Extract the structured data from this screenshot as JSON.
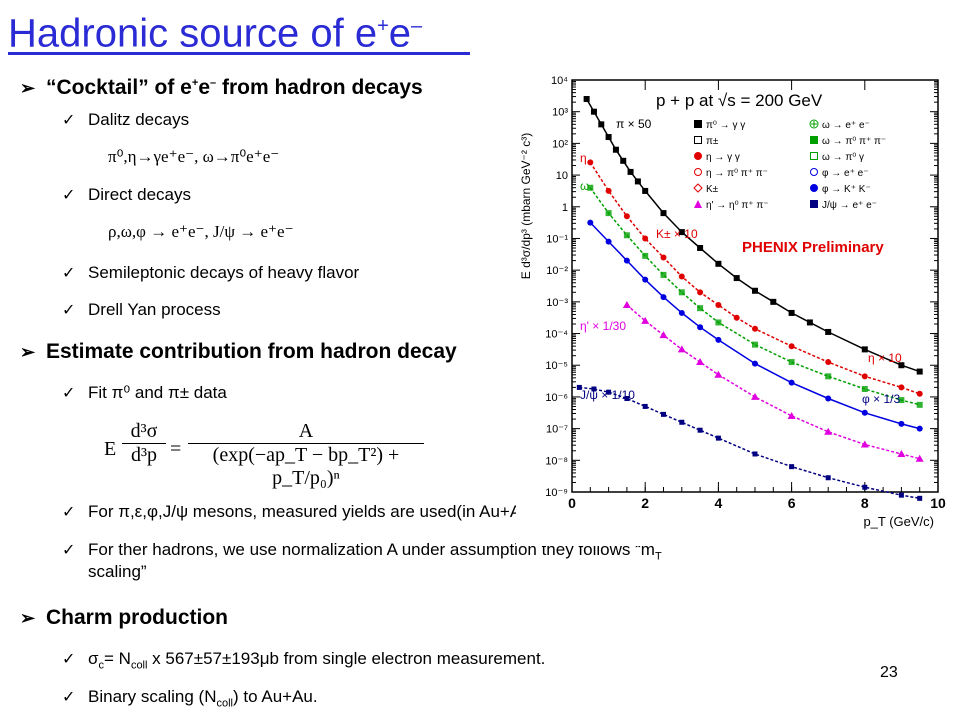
{
  "title": {
    "main": "Hadronic source of e",
    "sup1": "+",
    "mid": "e",
    "sup2": "–"
  },
  "bullets": {
    "cocktail_pre": "“Cocktail” of e",
    "cocktail_sup1": "+",
    "cocktail_mid": "e",
    "cocktail_sup2": "–",
    "cocktail_post": " from hadron decays",
    "estimate": "Estimate contribution from hadron decay",
    "charm": "Charm production"
  },
  "items": {
    "dalitz": "Dalitz decays",
    "dalitz_formula": "π⁰,η→γe⁺e⁻, ω→π⁰e⁺e⁻",
    "direct": "Direct decays",
    "direct_formula": "ρ,ω,φ → e⁺e⁻, J/ψ → e⁺e⁻",
    "semileptonic": "Semileptonic decays of heavy flavor",
    "drell_yan": "Drell Yan process",
    "fit": "Fit π⁰ and π± data",
    "for_mesons": "For π,ε,φ,J/ψ  mesons, measured yields are used(in Au+Au/p+p)",
    "for_ther_1": "For ther hadrons, we use normalization A under assumption they follows “m",
    "for_ther_sub": "T",
    "for_ther_2": "scaling”",
    "sigma_pre": "σ",
    "sigma_sub": "c",
    "sigma_mid": "= N",
    "sigma_sub2": "coll",
    "sigma_post": " x 567±57±193μb  from single electron measurement.",
    "binary_pre": "Binary scaling (N",
    "binary_sub": "coll",
    "binary_post": ") to Au+Au."
  },
  "formula": {
    "lhs_num": "d³σ",
    "lhs_den": "d³p",
    "lhs_e": "E",
    "eq": "=",
    "rhs_num": "A",
    "rhs_den": "(exp(−ap_T − bp_T²) + p_T/p₀)ⁿ"
  },
  "page_number": "23",
  "chart_data": {
    "type": "scatter",
    "title": "p + p at √s = 200 GeV",
    "xlabel": "p_T (GeV/c)",
    "ylabel": "E d³σ/dp³ (mbarn GeV⁻² c³)",
    "xlim": [
      0,
      10
    ],
    "ylim_log10": [
      -9,
      4
    ],
    "x_ticks": [
      "0",
      "2",
      "4",
      "6",
      "8",
      "10"
    ],
    "y_ticks": [
      "10⁻⁹",
      "10⁻⁸",
      "10⁻⁷",
      "10⁻⁶",
      "10⁻⁵",
      "10⁻⁴",
      "10⁻³",
      "10⁻²",
      "10⁻¹",
      "1",
      "10",
      "10²",
      "10³",
      "10⁴"
    ],
    "watermark": "PHENIX Preliminary",
    "legend": [
      {
        "label": "π⁰ → γ γ",
        "color": "#000000",
        "marker": "square-filled"
      },
      {
        "label": "π±",
        "color": "#000000",
        "marker": "square-open"
      },
      {
        "label": "η → γ γ",
        "color": "#e00000",
        "marker": "circle-filled"
      },
      {
        "label": "η → π⁰ π⁺ π⁻",
        "color": "#e00000",
        "marker": "circle-open"
      },
      {
        "label": "K±",
        "color": "#e00000",
        "marker": "diamond-open"
      },
      {
        "label": "η' → η⁰ π⁺ π⁻",
        "color": "#e000e0",
        "marker": "triangle-filled"
      },
      {
        "label": "ω → e⁺ e⁻",
        "color": "#00a000",
        "marker": "cross-open"
      },
      {
        "label": "ω → π⁰ π⁺ π⁻",
        "color": "#00a000",
        "marker": "square-filled"
      },
      {
        "label": "ω → π⁰ γ",
        "color": "#00a000",
        "marker": "square-open"
      },
      {
        "label": "φ → e⁺ e⁻",
        "color": "#0000e0",
        "marker": "circle-open"
      },
      {
        "label": "φ → K⁺ K⁻",
        "color": "#0000e0",
        "marker": "circle-filled"
      },
      {
        "label": "J/ψ → e⁺ e⁻",
        "color": "#000080",
        "marker": "square-filled"
      }
    ],
    "annotations": [
      "π × 50",
      "η",
      "ω",
      "K± × 10",
      "η × 10",
      "η' × 1/30",
      "φ × 1/3",
      "J/ψ × 1/10"
    ],
    "series": [
      {
        "name": "π × 50",
        "color": "#000000",
        "style": "solid",
        "x": [
          0.4,
          0.6,
          0.8,
          1.0,
          1.2,
          1.4,
          1.6,
          1.8,
          2.0,
          2.5,
          3.0,
          3.5,
          4.0,
          4.5,
          5.0,
          5.5,
          6.0,
          6.5,
          7.0,
          8.0,
          9.0,
          9.5
        ],
        "log10y": [
          3.4,
          3.0,
          2.6,
          2.2,
          1.8,
          1.45,
          1.1,
          0.8,
          0.5,
          -0.2,
          -0.8,
          -1.3,
          -1.8,
          -2.25,
          -2.65,
          -3.0,
          -3.35,
          -3.65,
          -3.95,
          -4.5,
          -5.0,
          -5.2
        ]
      },
      {
        "name": "η",
        "color": "#e00000",
        "style": "dotted",
        "x": [
          0.5,
          1.0,
          1.5,
          2.0,
          2.5,
          3.0,
          3.5,
          4.0,
          4.5,
          5.0,
          6.0,
          7.0,
          8.0,
          9.0,
          9.5
        ],
        "log10y": [
          1.4,
          0.5,
          -0.3,
          -1.0,
          -1.6,
          -2.2,
          -2.7,
          -3.1,
          -3.5,
          -3.85,
          -4.4,
          -4.9,
          -5.35,
          -5.7,
          -5.9
        ]
      },
      {
        "name": "ω",
        "color": "#00a000",
        "style": "dotted",
        "x": [
          0.5,
          1.0,
          1.5,
          2.0,
          2.5,
          3.0,
          3.5,
          4.0,
          5.0,
          6.0,
          7.0,
          8.0,
          9.0,
          9.5
        ],
        "log10y": [
          0.6,
          -0.2,
          -0.9,
          -1.55,
          -2.15,
          -2.7,
          -3.2,
          -3.65,
          -4.35,
          -4.9,
          -5.35,
          -5.75,
          -6.1,
          -6.25
        ]
      },
      {
        "name": "φ × 1/3",
        "color": "#0000e0",
        "style": "solid",
        "x": [
          0.5,
          1.0,
          1.5,
          2.0,
          2.5,
          3.0,
          3.5,
          4.0,
          5.0,
          6.0,
          7.0,
          8.0,
          9.0,
          9.5
        ],
        "log10y": [
          -0.5,
          -1.1,
          -1.7,
          -2.3,
          -2.85,
          -3.35,
          -3.8,
          -4.2,
          -4.95,
          -5.55,
          -6.05,
          -6.5,
          -6.85,
          -7.0
        ]
      },
      {
        "name": "η' × 1/30",
        "color": "#e000e0",
        "style": "dotted",
        "x": [
          1.5,
          2.0,
          2.5,
          3.0,
          3.5,
          4.0,
          5.0,
          6.0,
          7.0,
          8.0,
          9.0,
          9.5
        ],
        "log10y": [
          -3.1,
          -3.6,
          -4.05,
          -4.5,
          -4.9,
          -5.3,
          -6.0,
          -6.6,
          -7.1,
          -7.5,
          -7.8,
          -7.95
        ]
      },
      {
        "name": "J/ψ × 1/10",
        "color": "#000080",
        "style": "dotted",
        "x": [
          0.2,
          0.6,
          1.0,
          1.5,
          2.0,
          2.5,
          3.0,
          3.5,
          4.0,
          5.0,
          6.0,
          7.0,
          8.0,
          9.0,
          9.5
        ],
        "log10y": [
          -5.7,
          -5.75,
          -5.85,
          -6.05,
          -6.3,
          -6.55,
          -6.8,
          -7.05,
          -7.3,
          -7.8,
          -8.2,
          -8.55,
          -8.85,
          -9.1,
          -9.2
        ]
      }
    ]
  }
}
